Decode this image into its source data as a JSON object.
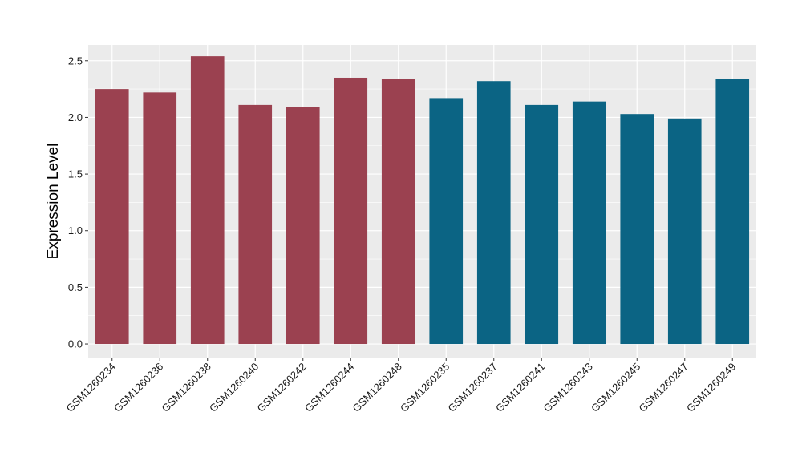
{
  "chart_data": {
    "type": "bar",
    "title": "",
    "xlabel": "",
    "ylabel": "Expression Level",
    "ylim": [
      -0.12,
      2.64
    ],
    "yticks": [
      0.0,
      0.5,
      1.0,
      1.5,
      2.0,
      2.5
    ],
    "ytick_labels": [
      "0.0",
      "0.5",
      "1.0",
      "1.5",
      "2.0",
      "2.5"
    ],
    "grid": true,
    "legend": "none",
    "panel_background": "#EBEBEB",
    "grid_color": "#FFFFFF",
    "categories": [
      "GSM1260234",
      "GSM1260236",
      "GSM1260238",
      "GSM1260240",
      "GSM1260242",
      "GSM1260244",
      "GSM1260248",
      "GSM1260235",
      "GSM1260237",
      "GSM1260241",
      "GSM1260243",
      "GSM1260245",
      "GSM1260247",
      "GSM1260249"
    ],
    "values": [
      2.25,
      2.22,
      2.54,
      2.11,
      2.09,
      2.35,
      2.34,
      2.17,
      2.32,
      2.11,
      2.14,
      2.03,
      1.99,
      2.34
    ],
    "bar_colors": [
      "#9B4150",
      "#9B4150",
      "#9B4150",
      "#9B4150",
      "#9B4150",
      "#9B4150",
      "#9B4150",
      "#0B6484",
      "#0B6484",
      "#0B6484",
      "#0B6484",
      "#0B6484",
      "#0B6484",
      "#0B6484"
    ]
  }
}
